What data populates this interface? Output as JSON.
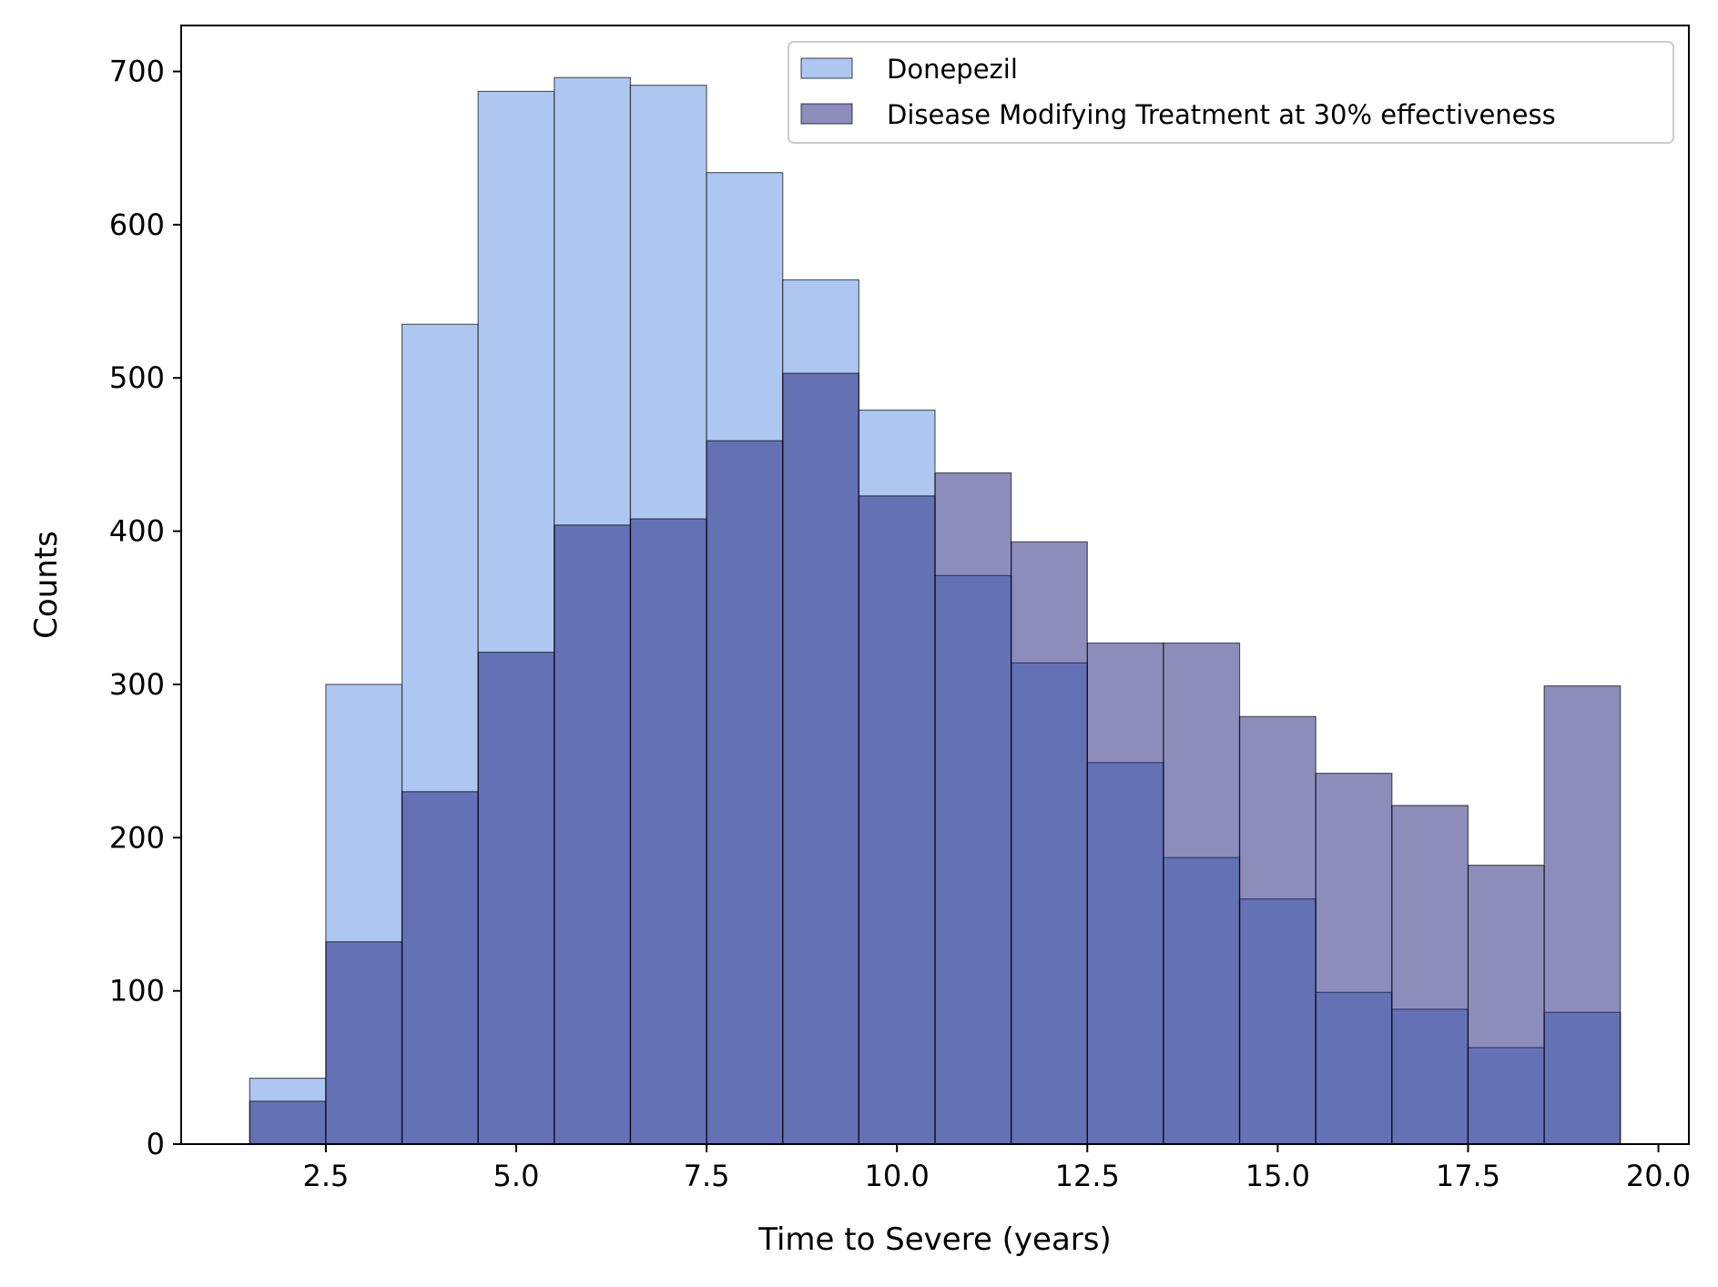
{
  "chart_data": {
    "type": "bar",
    "title": "",
    "xlabel": "Time to Severe (years)",
    "ylabel": "Counts",
    "xlim": [
      0.6,
      20.4
    ],
    "ylim": [
      0,
      730
    ],
    "xticks": [
      {
        "value": 2.5,
        "label": "2.5"
      },
      {
        "value": 5.0,
        "label": "5.0"
      },
      {
        "value": 7.5,
        "label": "7.5"
      },
      {
        "value": 10.0,
        "label": "10.0"
      },
      {
        "value": 12.5,
        "label": "12.5"
      },
      {
        "value": 15.0,
        "label": "15.0"
      },
      {
        "value": 17.5,
        "label": "17.5"
      },
      {
        "value": 20.0,
        "label": "20.0"
      }
    ],
    "yticks": [
      {
        "value": 0,
        "label": "0"
      },
      {
        "value": 100,
        "label": "100"
      },
      {
        "value": 200,
        "label": "200"
      },
      {
        "value": 300,
        "label": "300"
      },
      {
        "value": 400,
        "label": "400"
      },
      {
        "value": 500,
        "label": "500"
      },
      {
        "value": 600,
        "label": "600"
      },
      {
        "value": 700,
        "label": "700"
      }
    ],
    "bin_edges": [
      1.5,
      2.5,
      3.5,
      4.5,
      5.5,
      6.5,
      7.5,
      8.5,
      9.5,
      10.5,
      11.5,
      12.5,
      13.5,
      14.5,
      15.5,
      16.5,
      17.5,
      18.5,
      19.5
    ],
    "series": [
      {
        "name": "Donepezil",
        "color": "#aec7f0",
        "opacity": 1.0,
        "values": [
          43,
          300,
          535,
          687,
          696,
          691,
          634,
          564,
          479,
          371,
          314,
          249,
          187,
          160,
          99,
          88,
          63,
          86
        ]
      },
      {
        "name": "Disease Modifying Treatment at 30% effectiveness",
        "color": "#1a1c78",
        "opacity": 0.5,
        "values": [
          28,
          132,
          230,
          321,
          404,
          408,
          459,
          503,
          423,
          438,
          393,
          327,
          327,
          279,
          242,
          221,
          182,
          299
        ]
      }
    ],
    "grid": false,
    "legend_position": "top-right"
  }
}
